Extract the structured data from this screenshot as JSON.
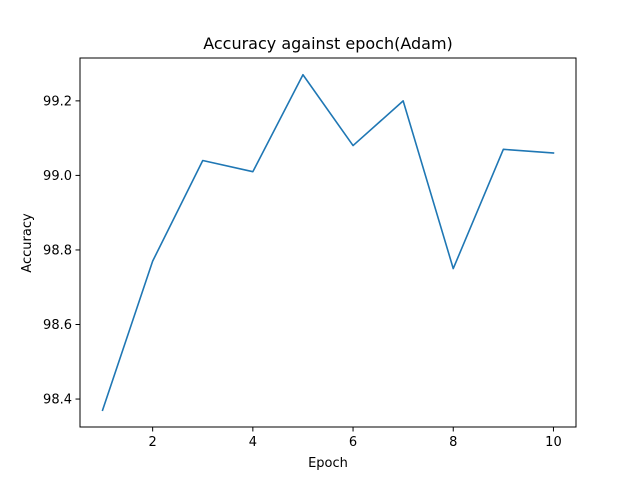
{
  "chart_data": {
    "type": "line",
    "title": "Accuracy against epoch(Adam)",
    "xlabel": "Epoch",
    "ylabel": "Accuracy",
    "x": [
      1,
      2,
      3,
      4,
      5,
      6,
      7,
      8,
      9,
      10
    ],
    "series": [
      {
        "values": [
          98.37,
          98.77,
          99.04,
          99.01,
          99.27,
          99.08,
          99.2,
          98.75,
          99.07,
          99.06
        ],
        "color": "#1f77b4"
      }
    ],
    "xlim": [
      0.55,
      10.45
    ],
    "ylim": [
      98.325,
      99.315
    ],
    "xticks": [
      2,
      4,
      6,
      8,
      10
    ],
    "xtick_labels": [
      "2",
      "4",
      "6",
      "8",
      "10"
    ],
    "yticks": [
      98.4,
      98.6,
      98.8,
      99.0,
      99.2
    ],
    "ytick_labels": [
      "98.4",
      "98.6",
      "98.8",
      "99.0",
      "99.2"
    ],
    "grid": false,
    "legend": "none"
  }
}
